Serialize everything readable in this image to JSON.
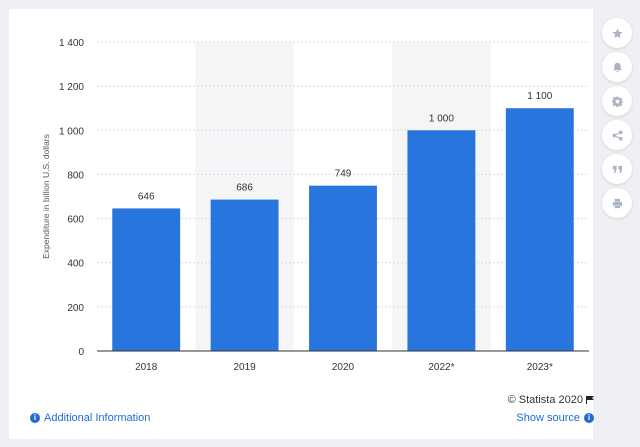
{
  "chart_data": {
    "type": "bar",
    "categories": [
      "2018",
      "2019",
      "2020",
      "2022*",
      "2023*"
    ],
    "values": [
      646,
      686,
      749,
      1000,
      1100
    ],
    "value_labels": [
      "646",
      "686",
      "749",
      "1 000",
      "1 100"
    ],
    "ylabel": "Expenditure in billion U.S. dollars",
    "ylim": [
      0,
      1400
    ],
    "yticks": [
      0,
      200,
      400,
      600,
      800,
      1000,
      1200,
      1400
    ],
    "ytick_labels": [
      "0",
      "200",
      "400",
      "600",
      "800",
      "1 000",
      "1 200",
      "1 400"
    ],
    "grid": true,
    "bar_color": "#2876dd",
    "alt_band_color": "#f4f5f7"
  },
  "toolbar": {
    "icons": [
      "star-icon",
      "bell-icon",
      "gear-icon",
      "share-icon",
      "quote-icon",
      "print-icon"
    ]
  },
  "footer": {
    "additional_info": "Additional Information",
    "credit": "© Statista 2020",
    "show_source": "Show source"
  }
}
